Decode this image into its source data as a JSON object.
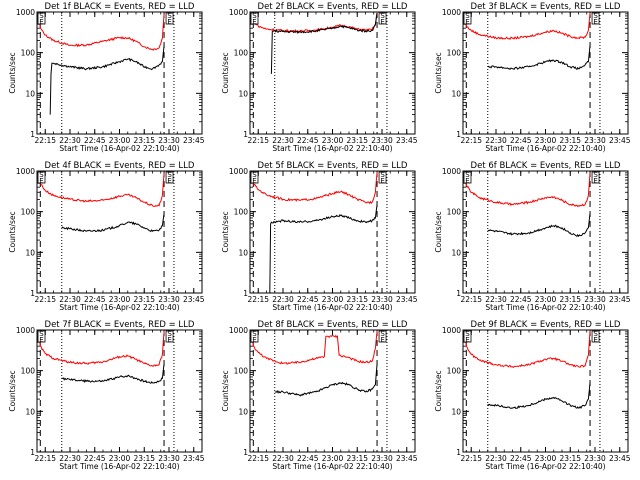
{
  "colors": {
    "events": "#000000",
    "lld": "#ff0000",
    "background": "#ffffff"
  },
  "chart_data": [
    {
      "type": "line",
      "title": "Det 1f BLACK = Events, RED = LLD",
      "xlabel": "Start Time (16-Apr-02 22:10:40)",
      "ylabel": "Counts/sec",
      "yscale": "log",
      "ylim": [
        1,
        1000
      ],
      "x_ticks": [
        "22:15",
        "22:30",
        "22:45",
        "23:00",
        "23:15",
        "23:30",
        "23:45"
      ],
      "y_ticks": [
        "1",
        "10",
        "100",
        "1000"
      ],
      "markers": [
        "S",
        "E"
      ],
      "series": [
        {
          "color": "#ff0000",
          "x": [
            "22:11",
            "22:12",
            "22:15",
            "22:20",
            "22:30",
            "22:40",
            "22:50",
            "23:00",
            "23:05",
            "23:10",
            "23:15",
            "23:20",
            "23:24",
            "23:26",
            "23:27"
          ],
          "y": [
            900,
            400,
            270,
            200,
            150,
            155,
            190,
            235,
            230,
            190,
            140,
            120,
            130,
            230,
            900
          ]
        },
        {
          "color": "#000000",
          "x": [
            "22:18",
            "22:18.5",
            "22:19",
            "22:20",
            "22:30",
            "22:40",
            "22:50",
            "23:00",
            "23:05",
            "23:10",
            "23:15",
            "23:20",
            "23:24",
            "23:26",
            "23:27"
          ],
          "y": [
            3,
            30,
            55,
            55,
            45,
            40,
            45,
            60,
            70,
            60,
            45,
            40,
            50,
            60,
            150
          ]
        }
      ]
    },
    {
      "type": "line",
      "title": "Det 2f BLACK = Events, RED = LLD",
      "xlabel": "Start Time (16-Apr-02 22:10:40)",
      "ylabel": "Counts/sec",
      "yscale": "log",
      "ylim": [
        1,
        1000
      ],
      "x_ticks": [
        "22:15",
        "22:30",
        "22:45",
        "23:00",
        "23:15",
        "23:30",
        "23:45"
      ],
      "y_ticks": [
        "1",
        "10",
        "100",
        "1000"
      ],
      "markers": [
        "S",
        "E",
        "S",
        "E"
      ],
      "series": [
        {
          "color": "#ff0000",
          "x": [
            "22:11",
            "22:12",
            "22:15",
            "22:20",
            "22:30",
            "22:40",
            "22:50",
            "23:00",
            "23:05",
            "23:10",
            "23:15",
            "23:20",
            "23:24",
            "23:26",
            "23:27"
          ],
          "y": [
            900,
            600,
            450,
            380,
            350,
            340,
            360,
            420,
            470,
            430,
            380,
            360,
            370,
            500,
            1000
          ]
        },
        {
          "color": "#000000",
          "x": [
            "22:23",
            "22:23.5",
            "22:24",
            "22:30",
            "22:40",
            "22:50",
            "23:00",
            "23:05",
            "23:10",
            "23:15",
            "23:20",
            "23:24",
            "23:26",
            "23:27"
          ],
          "y": [
            30,
            330,
            340,
            330,
            320,
            340,
            400,
            450,
            410,
            360,
            340,
            350,
            480,
            950
          ]
        }
      ]
    },
    {
      "type": "line",
      "title": "Det 3f BLACK = Events, RED = LLD",
      "xlabel": "Start Time (16-Apr-02 22:10:40)",
      "ylabel": "Counts/sec",
      "yscale": "log",
      "ylim": [
        1,
        1000
      ],
      "x_ticks": [
        "22:15",
        "22:30",
        "22:45",
        "23:00",
        "23:15",
        "23:30",
        "23:45"
      ],
      "y_ticks": [
        "1",
        "10",
        "100",
        "1000"
      ],
      "markers": [
        "S",
        "E"
      ],
      "series": [
        {
          "color": "#ff0000",
          "x": [
            "22:11",
            "22:12",
            "22:15",
            "22:20",
            "22:30",
            "22:40",
            "22:50",
            "23:00",
            "23:05",
            "23:10",
            "23:15",
            "23:20",
            "23:24",
            "23:26",
            "23:27"
          ],
          "y": [
            900,
            450,
            350,
            280,
            230,
            225,
            250,
            320,
            350,
            300,
            250,
            230,
            240,
            350,
            950
          ]
        },
        {
          "color": "#000000",
          "x": [
            "22:25",
            "22:30",
            "22:40",
            "22:50",
            "23:00",
            "23:05",
            "23:10",
            "23:15",
            "23:20",
            "23:24",
            "23:26",
            "23:27"
          ],
          "y": [
            45,
            45,
            40,
            45,
            60,
            65,
            58,
            45,
            40,
            50,
            60,
            150
          ]
        }
      ]
    },
    {
      "type": "line",
      "title": "Det 4f BLACK = Events, RED = LLD",
      "xlabel": "Start Time (16-Apr-02 22:10:40)",
      "ylabel": "Counts/sec",
      "yscale": "log",
      "ylim": [
        1,
        1000
      ],
      "x_ticks": [
        "22:15",
        "22:30",
        "22:45",
        "23:00",
        "23:15",
        "23:30",
        "23:45"
      ],
      "y_ticks": [
        "1",
        "10",
        "100",
        "1000"
      ],
      "markers": [
        "S",
        "E"
      ],
      "series": [
        {
          "color": "#ff0000",
          "x": [
            "22:11",
            "22:12",
            "22:15",
            "22:20",
            "22:30",
            "22:40",
            "22:50",
            "23:00",
            "23:05",
            "23:10",
            "23:15",
            "23:20",
            "23:24",
            "23:26",
            "23:27"
          ],
          "y": [
            900,
            500,
            330,
            250,
            200,
            180,
            190,
            240,
            260,
            220,
            170,
            140,
            140,
            250,
            900
          ]
        },
        {
          "color": "#000000",
          "x": [
            "22:25",
            "22:30",
            "22:40",
            "22:50",
            "23:00",
            "23:05",
            "23:10",
            "23:15",
            "23:20",
            "23:24",
            "23:26",
            "23:27"
          ],
          "y": [
            40,
            38,
            33,
            35,
            45,
            55,
            50,
            40,
            33,
            35,
            45,
            90
          ]
        }
      ]
    },
    {
      "type": "line",
      "title": "Det 5f BLACK = Events, RED = LLD",
      "xlabel": "Start Time (16-Apr-02 22:10:40)",
      "ylabel": "Counts/sec",
      "yscale": "log",
      "ylim": [
        1,
        1000
      ],
      "x_ticks": [
        "22:15",
        "22:30",
        "22:45",
        "23:00",
        "23:15",
        "23:30",
        "23:45"
      ],
      "y_ticks": [
        "1",
        "10",
        "100",
        "1000"
      ],
      "markers": [
        "S",
        "E"
      ],
      "series": [
        {
          "color": "#ff0000",
          "x": [
            "22:11",
            "22:12",
            "22:15",
            "22:20",
            "22:30",
            "22:40",
            "22:50",
            "23:00",
            "23:05",
            "23:10",
            "23:15",
            "23:20",
            "23:24",
            "23:26",
            "23:27"
          ],
          "y": [
            900,
            500,
            350,
            260,
            200,
            190,
            210,
            280,
            310,
            260,
            200,
            170,
            170,
            300,
            950
          ]
        },
        {
          "color": "#000000",
          "x": [
            "22:22",
            "22:22.5",
            "22:23",
            "22:30",
            "22:40",
            "22:50",
            "23:00",
            "23:05",
            "23:10",
            "23:15",
            "23:20",
            "23:24",
            "23:26",
            "23:27"
          ],
          "y": [
            1,
            50,
            55,
            60,
            55,
            60,
            75,
            80,
            70,
            60,
            55,
            60,
            70,
            150
          ]
        }
      ]
    },
    {
      "type": "line",
      "title": "Det 6f BLACK = Events, RED = LLD",
      "xlabel": "Start Time (16-Apr-02 22:10:40)",
      "ylabel": "Counts/sec",
      "yscale": "log",
      "ylim": [
        1,
        1000
      ],
      "x_ticks": [
        "22:15",
        "22:30",
        "22:45",
        "23:00",
        "23:15",
        "23:30",
        "23:45"
      ],
      "y_ticks": [
        "1",
        "10",
        "100",
        "1000"
      ],
      "markers": [
        "S",
        "E"
      ],
      "series": [
        {
          "color": "#ff0000",
          "x": [
            "22:11",
            "22:12",
            "22:15",
            "22:20",
            "22:30",
            "22:40",
            "22:50",
            "23:00",
            "23:05",
            "23:10",
            "23:15",
            "23:20",
            "23:24",
            "23:26",
            "23:27"
          ],
          "y": [
            900,
            450,
            300,
            220,
            170,
            150,
            170,
            220,
            230,
            190,
            150,
            140,
            150,
            250,
            900
          ]
        },
        {
          "color": "#000000",
          "x": [
            "22:25",
            "22:30",
            "22:40",
            "22:50",
            "23:00",
            "23:05",
            "23:10",
            "23:15",
            "23:20",
            "23:24",
            "23:26",
            "23:27"
          ],
          "y": [
            35,
            33,
            28,
            30,
            40,
            45,
            40,
            30,
            25,
            30,
            40,
            90
          ]
        }
      ]
    },
    {
      "type": "line",
      "title": "Det 7f BLACK = Events, RED = LLD",
      "xlabel": "Start Time (16-Apr-02 22:10:40)",
      "ylabel": "Counts/sec",
      "yscale": "log",
      "ylim": [
        1,
        1000
      ],
      "x_ticks": [
        "22:15",
        "22:30",
        "22:45",
        "23:00",
        "23:15",
        "23:30",
        "23:45"
      ],
      "y_ticks": [
        "1",
        "10",
        "100",
        "1000"
      ],
      "markers": [
        "S",
        "E"
      ],
      "series": [
        {
          "color": "#ff0000",
          "x": [
            "22:11",
            "22:12",
            "22:15",
            "22:20",
            "22:30",
            "22:40",
            "22:50",
            "23:00",
            "23:05",
            "23:10",
            "23:15",
            "23:20",
            "23:24",
            "23:26",
            "23:27"
          ],
          "y": [
            900,
            400,
            260,
            200,
            160,
            150,
            165,
            220,
            230,
            190,
            150,
            130,
            140,
            250,
            950
          ]
        },
        {
          "color": "#000000",
          "x": [
            "22:25",
            "22:30",
            "22:40",
            "22:50",
            "23:00",
            "23:05",
            "23:10",
            "23:15",
            "23:20",
            "23:24",
            "23:26",
            "23:27"
          ],
          "y": [
            65,
            60,
            55,
            55,
            70,
            75,
            65,
            55,
            50,
            55,
            65,
            150
          ]
        }
      ]
    },
    {
      "type": "line",
      "title": "Det 8f BLACK = Events, RED = LLD",
      "xlabel": "Start Time (16-Apr-02 22:10:40)",
      "ylabel": "Counts/sec",
      "yscale": "log",
      "ylim": [
        1,
        1000
      ],
      "x_ticks": [
        "22:15",
        "22:30",
        "22:45",
        "23:00",
        "23:15",
        "23:30",
        "23:45"
      ],
      "y_ticks": [
        "1",
        "10",
        "100",
        "1000"
      ],
      "markers": [
        "S",
        "E",
        "S",
        "E"
      ],
      "series": [
        {
          "color": "#ff0000",
          "x": [
            "22:11",
            "22:12",
            "22:15",
            "22:20",
            "22:30",
            "22:40",
            "22:50",
            "22:55",
            "22:56",
            "23:03",
            "23:04",
            "23:10",
            "23:15",
            "23:20",
            "23:24",
            "23:26",
            "23:27"
          ],
          "y": [
            900,
            400,
            280,
            200,
            150,
            160,
            200,
            220,
            700,
            700,
            240,
            210,
            170,
            160,
            170,
            350,
            950
          ]
        },
        {
          "color": "#000000",
          "x": [
            "22:25",
            "22:30",
            "22:40",
            "22:50",
            "23:00",
            "23:05",
            "23:10",
            "23:15",
            "23:20",
            "23:24",
            "23:26",
            "23:27"
          ],
          "y": [
            30,
            30,
            25,
            30,
            45,
            50,
            45,
            35,
            30,
            35,
            45,
            150
          ]
        }
      ]
    },
    {
      "type": "line",
      "title": "Det 9f BLACK = Events, RED = LLD",
      "xlabel": "Start Time (16-Apr-02 22:10:40)",
      "ylabel": "Counts/sec",
      "yscale": "log",
      "ylim": [
        1,
        1000
      ],
      "x_ticks": [
        "22:15",
        "22:30",
        "22:45",
        "23:00",
        "23:15",
        "23:30",
        "23:45"
      ],
      "y_ticks": [
        "1",
        "10",
        "100",
        "1000"
      ],
      "markers": [
        "S",
        "E"
      ],
      "series": [
        {
          "color": "#ff0000",
          "x": [
            "22:11",
            "22:12",
            "22:15",
            "22:20",
            "22:30",
            "22:40",
            "22:50",
            "23:00",
            "23:05",
            "23:10",
            "23:15",
            "23:20",
            "23:24",
            "23:26",
            "23:27"
          ],
          "y": [
            900,
            400,
            250,
            180,
            140,
            125,
            140,
            190,
            200,
            170,
            140,
            125,
            130,
            240,
            950
          ]
        },
        {
          "color": "#000000",
          "x": [
            "22:25",
            "22:30",
            "22:40",
            "22:50",
            "23:00",
            "23:05",
            "23:10",
            "23:15",
            "23:20",
            "23:24",
            "23:26",
            "23:27"
          ],
          "y": [
            15,
            14,
            12,
            14,
            20,
            22,
            18,
            14,
            12,
            14,
            20,
            50
          ]
        }
      ]
    }
  ]
}
